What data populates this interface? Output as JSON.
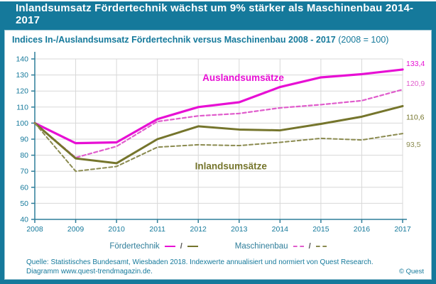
{
  "colors": {
    "teal": "#15799b",
    "axis": "#2f7e9a",
    "grid": "#d8d8d8",
    "magenta_solid": "#e70fd4",
    "magenta_dashed": "#e05ccc",
    "olive_solid": "#75752c",
    "olive_dashed": "#8b8b50",
    "title_text": "#ffffff"
  },
  "header": {
    "title": "Inlandsumsatz Fördertechnik wächst um 9% stärker als Maschinenbau 2014-2017"
  },
  "subtitle": {
    "main": "Indices In-/Auslandsumsatz Fördertechnik versus Maschinenbau 2008 - 2017",
    "suffix": "(2008 = 100)"
  },
  "chart_data": {
    "type": "line",
    "x": [
      2008,
      2009,
      2010,
      2011,
      2012,
      2013,
      2014,
      2015,
      2016,
      2017
    ],
    "ylim": [
      40,
      140
    ],
    "ytick_step": 10,
    "grid": true,
    "legend_position": "bottom",
    "series": [
      {
        "name": "Fördertechnik Auslandsumsätze",
        "style": "solid",
        "color": "#e70fd4",
        "width": 3.2,
        "values": [
          100,
          87.5,
          88,
          102.5,
          110,
          113,
          122.5,
          128.5,
          130.5,
          133.4
        ],
        "end_label": "133,4",
        "end_label_dy": -8
      },
      {
        "name": "Maschinenbau Auslandsumsätze",
        "style": "dashed",
        "color": "#e05ccc",
        "width": 2.2,
        "values": [
          100,
          78.5,
          85.5,
          101,
          104.5,
          106,
          109.5,
          111.5,
          114,
          120.9
        ],
        "end_label": "120,9",
        "end_label_dy": -8
      },
      {
        "name": "Fördertechnik Inlandsumsätze",
        "style": "solid",
        "color": "#75752c",
        "width": 3,
        "values": [
          100,
          78,
          75,
          90,
          98,
          96,
          95.5,
          99.5,
          104,
          110.6
        ],
        "end_label": "110,6",
        "end_label_dy": 16
      },
      {
        "name": "Maschinenbau Inlandsumsätze",
        "style": "dashed",
        "color": "#8b8b50",
        "width": 2,
        "values": [
          100,
          70,
          73,
          85,
          86.5,
          86,
          88,
          90.5,
          89.5,
          93.5
        ],
        "end_label": "93,5",
        "end_label_dy": 16
      }
    ],
    "annotations": [
      {
        "text": "Auslandsumsätze",
        "color": "#e70fd4",
        "x_index": 5.1,
        "y": 128
      },
      {
        "text": "Inlandsumsätze",
        "color": "#75752c",
        "x_index": 4.8,
        "y": 73
      }
    ]
  },
  "legend": {
    "fordertechnik_label": "Fördertechnik",
    "maschinenbau_label": "Maschinenbau",
    "separator": "/"
  },
  "footer": {
    "line1": "Quelle: Statistisches Bundesamt, Wiesbaden 2018. Indexwerte annualisiert und normiert von Quest Research.",
    "line2": "Diagramm  www.quest-trendmagazin.de.",
    "copyright": "© Quest"
  }
}
